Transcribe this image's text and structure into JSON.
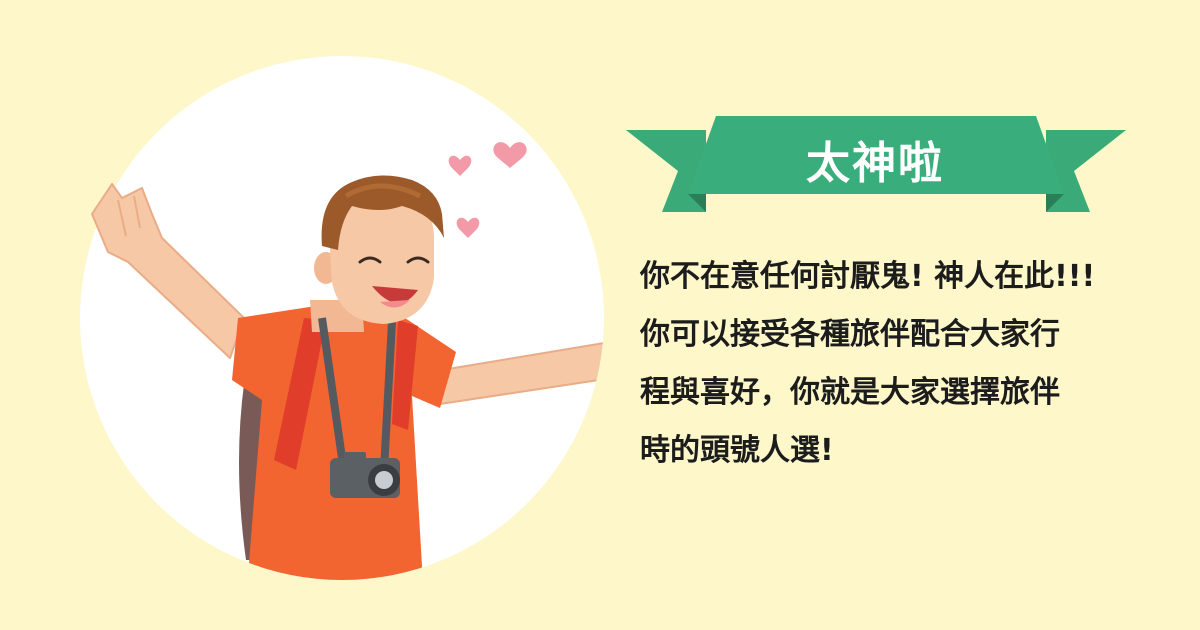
{
  "card": {
    "title": "太神啦",
    "lines": [
      "你不在意任何討厭鬼! 神人在此!!!",
      "你可以接受各種旅伴配合大家行",
      "程與喜好，你就是大家選擇旅伴",
      "時的頭號人選!"
    ]
  },
  "colors": {
    "background": "#fdf7c9",
    "ribbon_main": "#3aad7d",
    "ribbon_tails": "#3aab78",
    "text": "#1c1c1c",
    "shirt": "#f26430",
    "heart": "#f29aa8"
  },
  "illustration": {
    "subject": "cheerful-traveler-icon",
    "hearts": 3
  }
}
